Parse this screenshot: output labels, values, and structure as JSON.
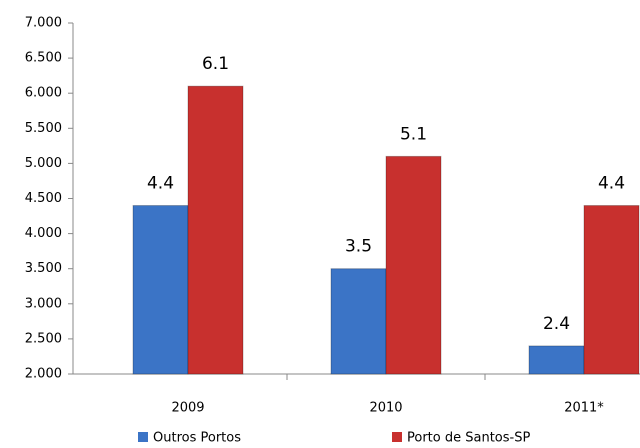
{
  "chart_data": {
    "type": "bar",
    "categories": [
      "2009",
      "2010",
      "2011*"
    ],
    "series": [
      {
        "name": "Outros Portos",
        "color": "#3b74c6",
        "values": [
          4.4,
          3.5,
          2.4
        ]
      },
      {
        "name": "Porto de Santos-SP",
        "color": "#c8302e",
        "values": [
          6.1,
          5.1,
          4.4
        ]
      }
    ],
    "ylim": [
      2,
      7
    ],
    "yticks": [
      {
        "value": 2,
        "label": "2.000"
      },
      {
        "value": 2.5,
        "label": "2.500"
      },
      {
        "value": 3,
        "label": "3.000"
      },
      {
        "value": 3.5,
        "label": "3.500"
      },
      {
        "value": 4,
        "label": "4.000"
      },
      {
        "value": 4.5,
        "label": "4.500"
      },
      {
        "value": 5,
        "label": "5.000"
      },
      {
        "value": 5.5,
        "label": "5.500"
      },
      {
        "value": 6,
        "label": "6.000"
      },
      {
        "value": 6.5,
        "label": "6.500"
      },
      {
        "value": 7,
        "label": "7.000"
      }
    ],
    "legend": "bottom"
  }
}
